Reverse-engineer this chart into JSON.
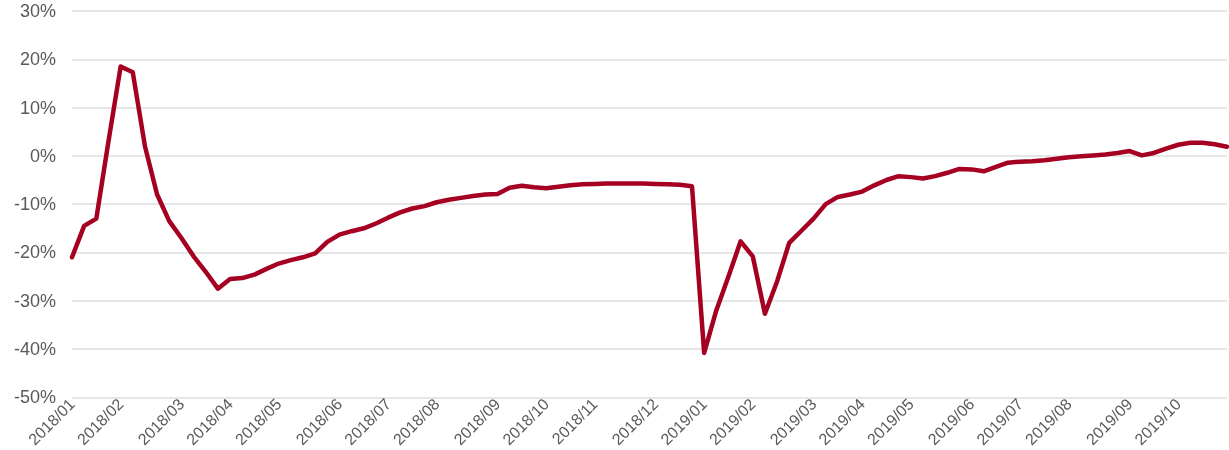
{
  "chart_data": {
    "type": "line",
    "categories": [
      "2018/01",
      null,
      null,
      null,
      "2018/02",
      null,
      null,
      null,
      null,
      "2018/03",
      null,
      null,
      null,
      "2018/04",
      null,
      null,
      null,
      "2018/05",
      null,
      null,
      null,
      null,
      "2018/06",
      null,
      null,
      null,
      "2018/07",
      null,
      null,
      null,
      "2018/08",
      null,
      null,
      null,
      null,
      "2018/09",
      null,
      null,
      null,
      "2018/10",
      null,
      null,
      null,
      "2018/11",
      null,
      null,
      null,
      null,
      "2018/12",
      null,
      null,
      null,
      "2019/01",
      null,
      null,
      null,
      "2019/02",
      null,
      null,
      null,
      null,
      "2019/03",
      null,
      null,
      null,
      "2019/04",
      null,
      null,
      null,
      "2019/05",
      null,
      null,
      null,
      null,
      "2019/06",
      null,
      null,
      null,
      "2019/07",
      null,
      null,
      null,
      "2019/08",
      null,
      null,
      null,
      null,
      "2019/09",
      null,
      null,
      null,
      "2019/10",
      null,
      null,
      null,
      null
    ],
    "series": [
      {
        "color": "#a50021",
        "values": [
          -21,
          -14.5,
          -13,
          3,
          18.5,
          17.3,
          2,
          -8,
          -13.5,
          -17,
          -20.8,
          -24,
          -27.5,
          -25.5,
          -25.3,
          -24.6,
          -23.4,
          -22.3,
          -21.6,
          -21,
          -20.2,
          -17.8,
          -16.3,
          -15.6,
          -15,
          -14,
          -12.8,
          -11.7,
          -10.9,
          -10.4,
          -9.6,
          -9.1,
          -8.7,
          -8.3,
          -8,
          -7.9,
          -6.6,
          -6.2,
          -6.5,
          -6.7,
          -6.4,
          -6.1,
          -5.9,
          -5.8,
          -5.7,
          -5.7,
          -5.7,
          -5.7,
          -5.8,
          -5.9,
          -6,
          -6.3,
          -40.8,
          -32,
          -25,
          -17.7,
          -20.8,
          -32.7,
          -26,
          -18,
          -15.5,
          -13,
          -10,
          -8.5,
          -8,
          -7.4,
          -6.1,
          -5,
          -4.2,
          -4.4,
          -4.7,
          -4.2,
          -3.5,
          -2.7,
          -2.8,
          -3.2,
          -2.3,
          -1.4,
          -1.2,
          -1.1,
          -0.9,
          -0.6,
          -0.3,
          -0.1,
          0.1,
          0.3,
          0.6,
          1,
          0.1,
          0.6,
          1.5,
          2.3,
          2.7,
          2.7,
          2.4,
          1.9
        ]
      }
    ],
    "ylim": [
      -50,
      30
    ],
    "yticks": [
      {
        "value": -50,
        "label": "-50%"
      },
      {
        "value": -40,
        "label": "-40%"
      },
      {
        "value": -30,
        "label": "-30%"
      },
      {
        "value": -20,
        "label": "-20%"
      },
      {
        "value": -10,
        "label": "-10%"
      },
      {
        "value": 0,
        "label": "0%"
      },
      {
        "value": 10,
        "label": "10%"
      },
      {
        "value": 20,
        "label": "20%"
      },
      {
        "value": 30,
        "label": "30%"
      }
    ],
    "grid": "y"
  }
}
